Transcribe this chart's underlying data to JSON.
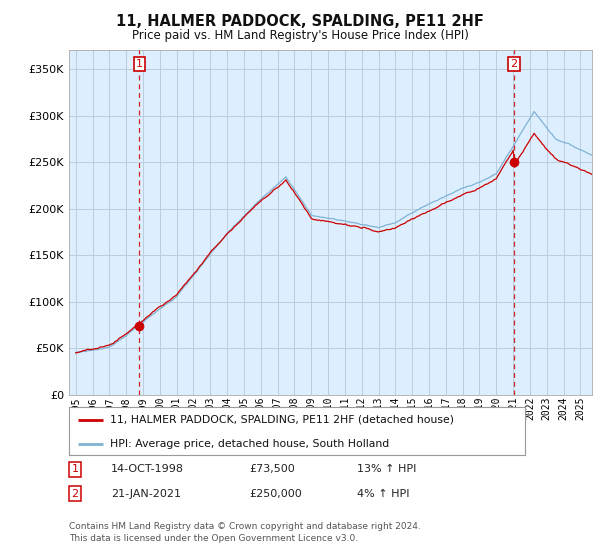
{
  "title": "11, HALMER PADDOCK, SPALDING, PE11 2HF",
  "subtitle": "Price paid vs. HM Land Registry's House Price Index (HPI)",
  "ylim": [
    0,
    370000
  ],
  "yticks": [
    0,
    50000,
    100000,
    150000,
    200000,
    250000,
    300000,
    350000
  ],
  "sale1_date": 1998.79,
  "sale1_price": 73500,
  "sale2_date": 2021.05,
  "sale2_price": 250000,
  "legend_line1": "11, HALMER PADDOCK, SPALDING, PE11 2HF (detached house)",
  "legend_line2": "HPI: Average price, detached house, South Holland",
  "note1_num": "1",
  "note1_date": "14-OCT-1998",
  "note1_price": "£73,500",
  "note1_hpi": "13% ↑ HPI",
  "note2_num": "2",
  "note2_date": "21-JAN-2021",
  "note2_price": "£250,000",
  "note2_hpi": "4% ↑ HPI",
  "footer": "Contains HM Land Registry data © Crown copyright and database right 2024.\nThis data is licensed under the Open Government Licence v3.0.",
  "sale_color": "#cc0000",
  "hpi_color": "#7fb3d3",
  "plot_bg_color": "#ddeeff",
  "background_color": "#ffffff",
  "grid_color": "#bbccdd"
}
